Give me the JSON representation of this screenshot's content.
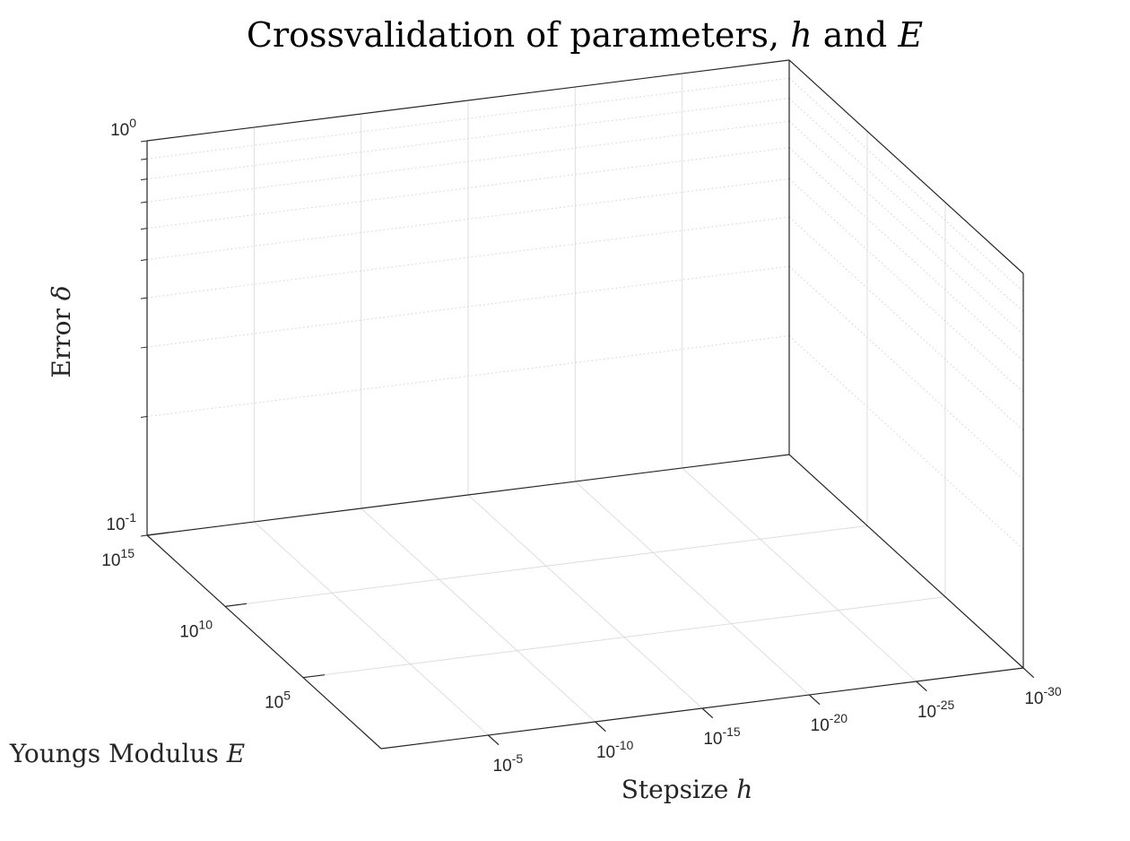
{
  "chart_data": {
    "type": "scatter",
    "title": {
      "text": "Crossvalidation of parameters, ",
      "var1": "h",
      "mid": " and ",
      "var2": "E"
    },
    "xlabel": {
      "text": "Stepsize ",
      "var": "h"
    },
    "ylabel": {
      "text": "Youngs Modulus ",
      "var": "E"
    },
    "zlabel": {
      "text": "Error ",
      "var": "δ"
    },
    "x_axis": {
      "scale": "log",
      "direction": "decreasing",
      "range_exponents": [
        0,
        -30
      ],
      "ticks": [
        {
          "exp": -5,
          "label": "10",
          "sup": "-5"
        },
        {
          "exp": -10,
          "label": "10",
          "sup": "-10"
        },
        {
          "exp": -15,
          "label": "10",
          "sup": "-15"
        },
        {
          "exp": -20,
          "label": "10",
          "sup": "-20"
        },
        {
          "exp": -25,
          "label": "10",
          "sup": "-25"
        },
        {
          "exp": -30,
          "label": "10",
          "sup": "-30"
        }
      ]
    },
    "y_axis": {
      "scale": "log",
      "range_exponents": [
        0,
        15
      ],
      "ticks": [
        {
          "exp": 5,
          "label": "10",
          "sup": "5"
        },
        {
          "exp": 10,
          "label": "10",
          "sup": "10"
        },
        {
          "exp": 15,
          "label": "10",
          "sup": "15"
        }
      ]
    },
    "z_axis": {
      "scale": "log",
      "range_exponents": [
        -1,
        0
      ],
      "ticks": [
        {
          "exp": -1,
          "label": "10",
          "sup": "-1"
        },
        {
          "exp": 0,
          "label": "10",
          "sup": "0"
        }
      ]
    },
    "grid": true,
    "series": []
  },
  "colors": {
    "axis": "#262626",
    "grid": "#dedede",
    "minor_grid": "#d0d0d0"
  }
}
